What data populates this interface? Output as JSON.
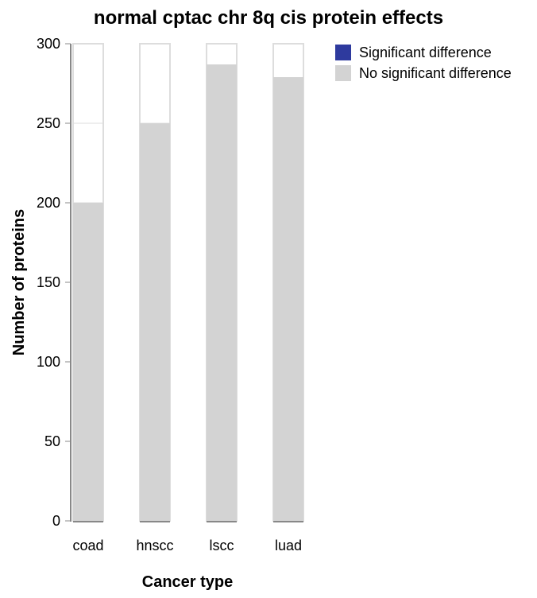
{
  "chart_data": {
    "type": "bar",
    "title": "normal cptac chr 8q cis protein effects",
    "xlabel": "Cancer type",
    "ylabel": "Number of proteins",
    "categories": [
      "coad",
      "hnscc",
      "lscc",
      "luad"
    ],
    "series": [
      {
        "name": "Significant difference",
        "values": [
          0,
          0,
          0,
          0
        ],
        "color": "#2e3a9e"
      },
      {
        "name": "No significant difference",
        "values": [
          200,
          250,
          287,
          279
        ],
        "color": "#d3d3d3"
      }
    ],
    "ylim": [
      0,
      300
    ],
    "yticks": [
      0,
      50,
      100,
      150,
      200,
      250,
      300
    ],
    "grid": true,
    "legend": "top-right",
    "stacked": true
  }
}
